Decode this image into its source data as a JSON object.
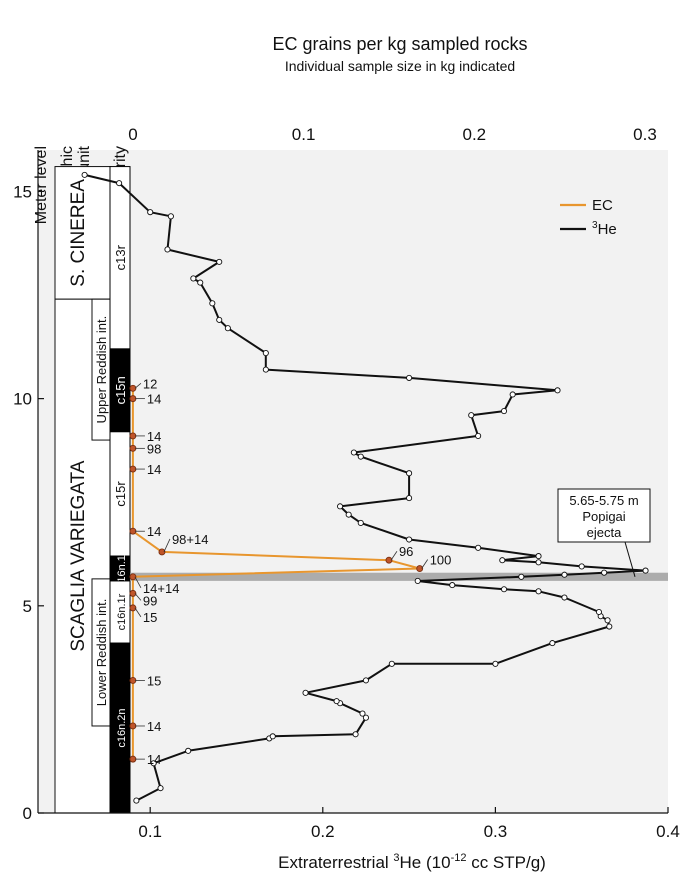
{
  "chart_data": {
    "type": "line",
    "title": "EC grains per kg sampled rocks",
    "subtitle": "Individual sample size in kg indicated",
    "xlabel": "Extraterrestrial 3He (10-12 cc STP/g)",
    "xlabel_parts": {
      "pre": "Extraterrestrial ",
      "sup1": "3",
      "mid": "He (10",
      "sup2": "-12",
      "post": " cc STP/g)"
    },
    "ylabel": "Meter level",
    "x_bottom": {
      "range": [
        0.035,
        0.4
      ],
      "ticks": [
        "0.1",
        "0.2",
        "0.3",
        "0.4"
      ]
    },
    "x_top": {
      "range": [
        0,
        0.3
      ],
      "ticks": [
        "0",
        "0.1",
        "0.2",
        "0.3"
      ]
    },
    "y": {
      "range": [
        0,
        16
      ],
      "ticks": [
        "0",
        "5",
        "10",
        "15"
      ]
    },
    "legend": {
      "position": "top-right",
      "entries": [
        {
          "label": "EC",
          "color": "#e8962e"
        },
        {
          "label": "He",
          "sup": "3",
          "color": "#111111"
        }
      ]
    },
    "series": [
      {
        "name": "EC",
        "color": "#e8962e",
        "axis": "top",
        "points": [
          {
            "x": 0.0,
            "y": 1.3,
            "label": "14"
          },
          {
            "x": 0.0,
            "y": 2.1,
            "label": "14"
          },
          {
            "x": 0.0,
            "y": 3.2,
            "label": "15"
          },
          {
            "x": 0.0,
            "y": 4.95,
            "label": "15"
          },
          {
            "x": 0.0,
            "y": 5.3,
            "label": "99"
          },
          {
            "x": 0.0,
            "y": 5.7,
            "label": "14+14"
          },
          {
            "x": 0.168,
            "y": 5.9,
            "label": "100"
          },
          {
            "x": 0.15,
            "y": 6.1,
            "label": "96"
          },
          {
            "x": 0.017,
            "y": 6.3,
            "label": "98+14"
          },
          {
            "x": 0.0,
            "y": 6.8,
            "label": "14"
          },
          {
            "x": 0.0,
            "y": 8.3,
            "label": "14"
          },
          {
            "x": 0.0,
            "y": 8.8,
            "label": "98"
          },
          {
            "x": 0.0,
            "y": 9.1,
            "label": "14"
          },
          {
            "x": 0.0,
            "y": 10.0,
            "label": "14"
          },
          {
            "x": 0.0,
            "y": 10.25,
            "label": "12"
          }
        ]
      },
      {
        "name": "He",
        "color": "#111111",
        "axis": "bottom",
        "points": [
          {
            "x": 0.092,
            "y": 0.3
          },
          {
            "x": 0.106,
            "y": 0.6
          },
          {
            "x": 0.102,
            "y": 1.2
          },
          {
            "x": 0.122,
            "y": 1.5
          },
          {
            "x": 0.169,
            "y": 1.8
          },
          {
            "x": 0.171,
            "y": 1.85
          },
          {
            "x": 0.219,
            "y": 1.9
          },
          {
            "x": 0.225,
            "y": 2.3
          },
          {
            "x": 0.223,
            "y": 2.4
          },
          {
            "x": 0.21,
            "y": 2.65
          },
          {
            "x": 0.208,
            "y": 2.7
          },
          {
            "x": 0.19,
            "y": 2.9
          },
          {
            "x": 0.225,
            "y": 3.2
          },
          {
            "x": 0.24,
            "y": 3.6
          },
          {
            "x": 0.3,
            "y": 3.6
          },
          {
            "x": 0.333,
            "y": 4.1
          },
          {
            "x": 0.366,
            "y": 4.5
          },
          {
            "x": 0.365,
            "y": 4.65
          },
          {
            "x": 0.361,
            "y": 4.75
          },
          {
            "x": 0.36,
            "y": 4.85
          },
          {
            "x": 0.34,
            "y": 5.2
          },
          {
            "x": 0.325,
            "y": 5.35
          },
          {
            "x": 0.305,
            "y": 5.4
          },
          {
            "x": 0.275,
            "y": 5.5
          },
          {
            "x": 0.255,
            "y": 5.6
          },
          {
            "x": 0.315,
            "y": 5.7
          },
          {
            "x": 0.34,
            "y": 5.75
          },
          {
            "x": 0.363,
            "y": 5.8
          },
          {
            "x": 0.387,
            "y": 5.85
          },
          {
            "x": 0.35,
            "y": 5.95
          },
          {
            "x": 0.325,
            "y": 6.05
          },
          {
            "x": 0.304,
            "y": 6.1
          },
          {
            "x": 0.325,
            "y": 6.2
          },
          {
            "x": 0.29,
            "y": 6.4
          },
          {
            "x": 0.25,
            "y": 6.6
          },
          {
            "x": 0.222,
            "y": 7.0
          },
          {
            "x": 0.215,
            "y": 7.2
          },
          {
            "x": 0.21,
            "y": 7.4
          },
          {
            "x": 0.25,
            "y": 7.6
          },
          {
            "x": 0.25,
            "y": 8.2
          },
          {
            "x": 0.222,
            "y": 8.6
          },
          {
            "x": 0.218,
            "y": 8.7
          },
          {
            "x": 0.29,
            "y": 9.1
          },
          {
            "x": 0.286,
            "y": 9.6
          },
          {
            "x": 0.305,
            "y": 9.7
          },
          {
            "x": 0.31,
            "y": 10.1
          },
          {
            "x": 0.336,
            "y": 10.2
          },
          {
            "x": 0.25,
            "y": 10.5
          },
          {
            "x": 0.167,
            "y": 10.7
          },
          {
            "x": 0.167,
            "y": 11.1
          },
          {
            "x": 0.145,
            "y": 11.7
          },
          {
            "x": 0.14,
            "y": 11.9
          },
          {
            "x": 0.136,
            "y": 12.3
          },
          {
            "x": 0.129,
            "y": 12.8
          },
          {
            "x": 0.125,
            "y": 12.9
          },
          {
            "x": 0.14,
            "y": 13.3
          },
          {
            "x": 0.11,
            "y": 13.6
          },
          {
            "x": 0.112,
            "y": 14.4
          },
          {
            "x": 0.1,
            "y": 14.5
          },
          {
            "x": 0.082,
            "y": 15.2
          },
          {
            "x": 0.062,
            "y": 15.4
          }
        ]
      }
    ],
    "annotations": {
      "popigai": {
        "lines": [
          "5.65-5.75 m",
          "Popigai",
          "ejecta"
        ],
        "y_range": [
          5.65,
          5.75
        ],
        "x": 0.375
      },
      "columns": [
        {
          "text": "Meter level"
        },
        {
          "text": "Lithostratigraphic unit",
          "lines": [
            "Lithostratigraphic",
            "unit"
          ]
        },
        {
          "text": "Magnetic Polarity"
        }
      ],
      "litho_units": [
        {
          "label": "S. CINEREA",
          "y0": 12.4,
          "y1": 15.6
        },
        {
          "label": "SCAGLIA VARIEGATA",
          "y0": 0,
          "y1": 12.4
        }
      ],
      "reddish": [
        {
          "label": "Upper Reddish int.",
          "y0": 9.0,
          "y1": 12.4
        },
        {
          "label": "Lower Reddish int.",
          "y0": 2.1,
          "y1": 5.65
        }
      ],
      "polarity": [
        {
          "chron": "c13r",
          "y0": 11.2,
          "y1": 15.6,
          "normal": false
        },
        {
          "chron": "c15n",
          "y0": 9.2,
          "y1": 11.2,
          "normal": true
        },
        {
          "chron": "c15r",
          "y0": 6.2,
          "y1": 9.2,
          "normal": false
        },
        {
          "chron": "c16n.1n",
          "y0": 5.6,
          "y1": 6.2,
          "normal": true
        },
        {
          "chron": "c16n.1r",
          "y0": 4.1,
          "y1": 5.6,
          "normal": false
        },
        {
          "chron": "c16n.2n",
          "y0": 0,
          "y1": 4.1,
          "normal": true
        }
      ]
    }
  }
}
